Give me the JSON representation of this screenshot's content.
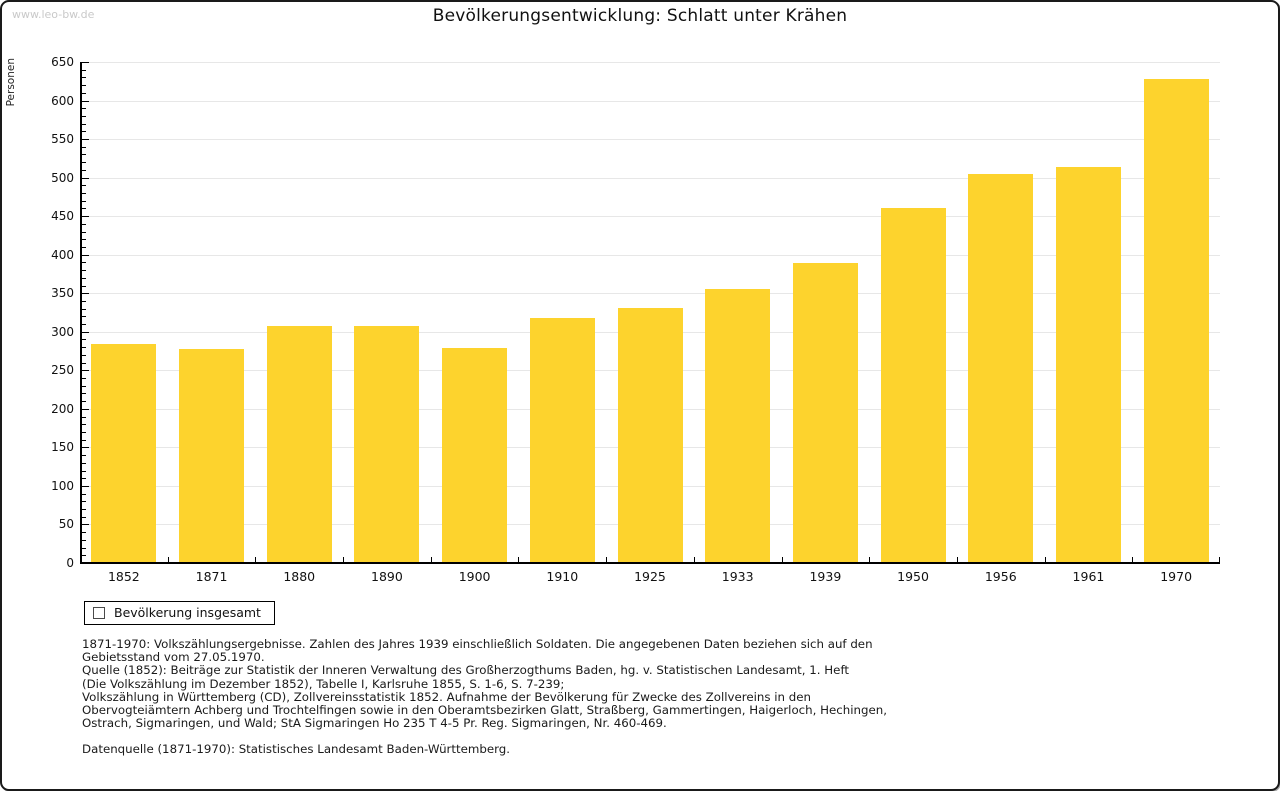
{
  "page": {
    "watermark": "www.leo-bw.de",
    "title": "Bevölkerungsentwicklung: Schlatt unter Krähen"
  },
  "chart_data": {
    "type": "bar",
    "title": "Bevölkerungsentwicklung: Schlatt unter Krähen",
    "xlabel": "",
    "ylabel": "Personen",
    "categories": [
      "1852",
      "1871",
      "1880",
      "1890",
      "1900",
      "1910",
      "1925",
      "1933",
      "1939",
      "1950",
      "1956",
      "1961",
      "1970"
    ],
    "series": [
      {
        "name": "Bevölkerung insgesamt",
        "values": [
          283,
          276,
          306,
          306,
          278,
          316,
          330,
          354,
          388,
          459,
          504,
          512,
          627
        ]
      }
    ],
    "ylim": [
      0,
      650
    ],
    "y_major_step": 50,
    "y_minor_step": 10,
    "grid": true,
    "legend_position": "bottom-left",
    "bar_color": "#FDD32D"
  },
  "legend": {
    "label": "Bevölkerung insgesamt"
  },
  "footnotes": {
    "lines": [
      "1871-1970: Volkszählungsergebnisse. Zahlen des Jahres 1939 einschließlich Soldaten. Die angegebenen Daten beziehen sich auf den",
      "Gebietsstand vom 27.05.1970.",
      "Quelle (1852): Beiträge zur Statistik der Inneren Verwaltung des Großherzogthums Baden, hg. v. Statistischen Landesamt, 1. Heft",
      "(Die Volkszählung im Dezember 1852), Tabelle I, Karlsruhe 1855, S. 1-6, S. 7-239;",
      "Volkszählung in Württemberg (CD), Zollvereinsstatistik 1852. Aufnahme der Bevölkerung für Zwecke des Zollvereins in den",
      "Obervogteiämtern Achberg und Trochtelfingen sowie in den Oberamtsbezirken Glatt, Straßberg, Gammertingen, Haigerloch, Hechingen,",
      "Ostrach, Sigmaringen, und Wald; StA Sigmaringen Ho 235 T 4-5 Pr. Reg. Sigmaringen, Nr. 460-469."
    ],
    "datasource": "Datenquelle (1871-1970): Statistisches Landesamt Baden-Württemberg."
  }
}
